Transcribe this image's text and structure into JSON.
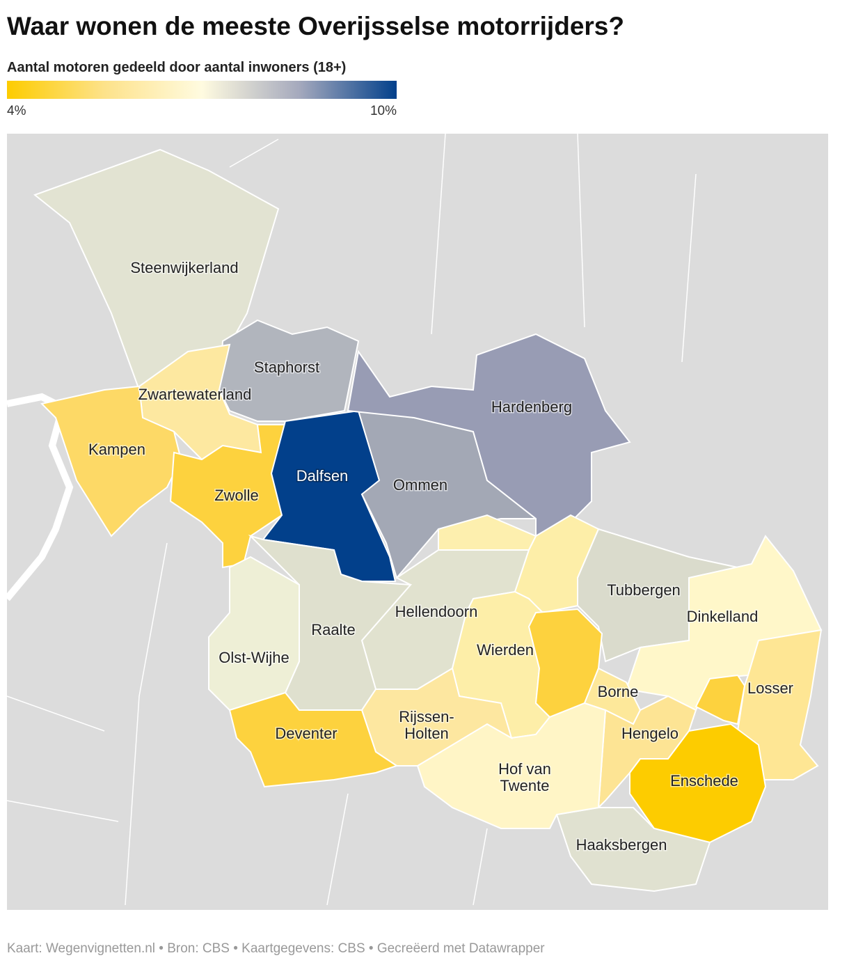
{
  "header": {
    "title": "Waar wonen de meeste Overijsselse motorrijders?",
    "subtitle": "Aantal motoren gedeeld door aantal inwoners (18+)"
  },
  "legend": {
    "min": {
      "value": 4,
      "label": "4%"
    },
    "max": {
      "value": 10,
      "label": "10%"
    },
    "colors": [
      "#fdcc00",
      "#fde28a",
      "#fffbe0",
      "#a5a9bd",
      "#02408b"
    ]
  },
  "regions": [
    {
      "name": "Steenwijkerland",
      "color": "#e2e3d2"
    },
    {
      "name": "Staphorst",
      "color": "#b1b5bd"
    },
    {
      "name": "Zwartewaterland",
      "color": "#fde8a0"
    },
    {
      "name": "Kampen",
      "color": "#fdd966"
    },
    {
      "name": "Zwolle",
      "color": "#fdd23e"
    },
    {
      "name": "Dalfsen",
      "color": "#02408b"
    },
    {
      "name": "Ommen",
      "color": "#a3a8b5"
    },
    {
      "name": "Hardenberg",
      "color": "#989cb4"
    },
    {
      "name": "Hellendoorn",
      "color": "#e1e2cf"
    },
    {
      "name": "Raalte",
      "color": "#dfe0ce"
    },
    {
      "name": "Olst-Wijhe",
      "color": "#eeefd6"
    },
    {
      "name": null,
      "color": "#fdefae"
    },
    {
      "name": null,
      "color": "#fdeea8"
    },
    {
      "name": "Tubbergen",
      "color": "#dadbcc"
    },
    {
      "name": "Dinkelland",
      "color": "#fff7c9"
    },
    {
      "name": "Wierden",
      "color": "#fdeea8"
    },
    {
      "name": null,
      "color": "#fdd23e"
    },
    {
      "name": "Borne",
      "color": "#fde89a"
    },
    {
      "name": "Losser",
      "color": "#fee694"
    },
    {
      "name": null,
      "color": "#fdd23e"
    },
    {
      "name": "Hengelo",
      "color": "#fde494"
    },
    {
      "name": "Enschede",
      "color": "#fdcc00"
    },
    {
      "name": "Haaksbergen",
      "color": "#e0e1d0"
    },
    {
      "name": "Hof van\nTwente",
      "color": "#fff5c6"
    },
    {
      "name": "Rijssen-\nHolten",
      "color": "#fde7a0"
    },
    {
      "name": "Deventer",
      "color": "#fdd23e"
    }
  ],
  "footer": "Kaart: Wegenvignetten.nl • Bron: CBS • Kaartgegevens: CBS • Gecreëerd met Datawrapper"
}
